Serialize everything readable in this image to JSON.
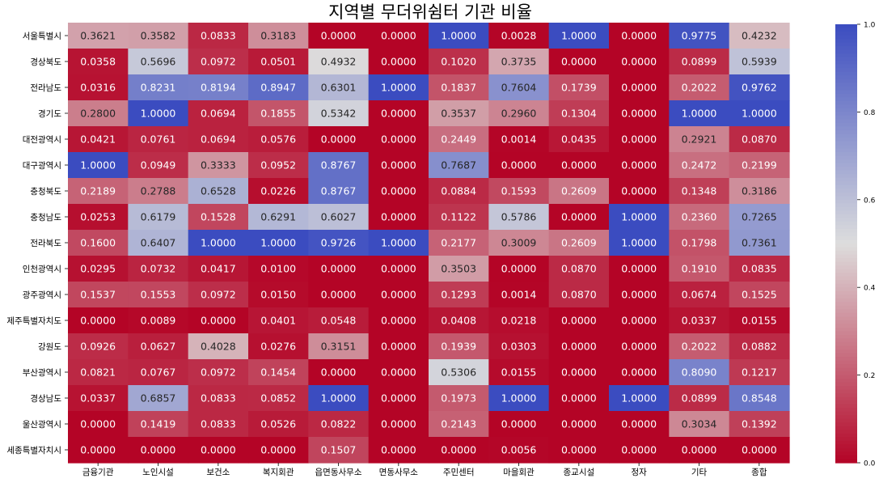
{
  "chart_data": {
    "type": "heatmap",
    "title": "지역별 무더위쉼터 기관 비율",
    "colormap": "coolwarm_reversed",
    "color_low": "#b40426",
    "color_mid": "#dddddd",
    "color_high": "#3b4cc0",
    "value_range": [
      0,
      1
    ],
    "colorbar_ticks": [
      "0.0",
      "0.2",
      "0.4",
      "0.6",
      "0.8",
      "1.0"
    ],
    "columns": [
      "금융기관",
      "노인시설",
      "보건소",
      "복지회관",
      "읍면동사무소",
      "면동사무소",
      "주민센터",
      "마을회관",
      "종교시설",
      "정자",
      "기타",
      "종합"
    ],
    "rows": [
      "서울특별시",
      "경상북도",
      "전라남도",
      "경기도",
      "대전광역시",
      "대구광역시",
      "충청북도",
      "충청남도",
      "전라북도",
      "인천광역시",
      "광주광역시",
      "제주특별자치도",
      "강원도",
      "부산광역시",
      "경상남도",
      "울산광역시",
      "세종특별자치시"
    ],
    "values": [
      [
        "0.3621",
        "0.3582",
        "0.0833",
        "0.3183",
        "0.0000",
        "0.0000",
        "1.0000",
        "0.0028",
        "1.0000",
        "0.0000",
        "0.9775",
        "0.4232"
      ],
      [
        "0.0358",
        "0.5696",
        "0.0972",
        "0.0501",
        "0.4932",
        "0.0000",
        "0.1020",
        "0.3735",
        "0.0000",
        "0.0000",
        "0.0899",
        "0.5939"
      ],
      [
        "0.0316",
        "0.8231",
        "0.8194",
        "0.8947",
        "0.6301",
        "1.0000",
        "0.1837",
        "0.7604",
        "0.1739",
        "0.0000",
        "0.2022",
        "0.9762"
      ],
      [
        "0.2800",
        "1.0000",
        "0.0694",
        "0.1855",
        "0.5342",
        "0.0000",
        "0.3537",
        "0.2960",
        "0.1304",
        "0.0000",
        "1.0000",
        "1.0000"
      ],
      [
        "0.0421",
        "0.0761",
        "0.0694",
        "0.0576",
        "0.0000",
        "0.0000",
        "0.2449",
        "0.0014",
        "0.0435",
        "0.0000",
        "0.2921",
        "0.0870"
      ],
      [
        "1.0000",
        "0.0949",
        "0.3333",
        "0.0952",
        "0.8767",
        "0.0000",
        "0.7687",
        "0.0000",
        "0.0000",
        "0.0000",
        "0.2472",
        "0.2199"
      ],
      [
        "0.2189",
        "0.2788",
        "0.6528",
        "0.0226",
        "0.8767",
        "0.0000",
        "0.0884",
        "0.1593",
        "0.2609",
        "0.0000",
        "0.1348",
        "0.3186"
      ],
      [
        "0.0253",
        "0.6179",
        "0.1528",
        "0.6291",
        "0.6027",
        "0.0000",
        "0.1122",
        "0.5786",
        "0.0000",
        "1.0000",
        "0.2360",
        "0.7265"
      ],
      [
        "0.1600",
        "0.6407",
        "1.0000",
        "1.0000",
        "0.9726",
        "1.0000",
        "0.2177",
        "0.3009",
        "0.2609",
        "1.0000",
        "0.1798",
        "0.7361"
      ],
      [
        "0.0295",
        "0.0732",
        "0.0417",
        "0.0100",
        "0.0000",
        "0.0000",
        "0.3503",
        "0.0000",
        "0.0870",
        "0.0000",
        "0.1910",
        "0.0835"
      ],
      [
        "0.1537",
        "0.1553",
        "0.0972",
        "0.0150",
        "0.0000",
        "0.0000",
        "0.1293",
        "0.0014",
        "0.0870",
        "0.0000",
        "0.0674",
        "0.1525"
      ],
      [
        "0.0000",
        "0.0089",
        "0.0000",
        "0.0401",
        "0.0548",
        "0.0000",
        "0.0408",
        "0.0218",
        "0.0000",
        "0.0000",
        "0.0337",
        "0.0155"
      ],
      [
        "0.0926",
        "0.0627",
        "0.4028",
        "0.0276",
        "0.3151",
        "0.0000",
        "0.1939",
        "0.0303",
        "0.0000",
        "0.0000",
        "0.2022",
        "0.0882"
      ],
      [
        "0.0821",
        "0.0767",
        "0.0972",
        "0.1454",
        "0.0000",
        "0.0000",
        "0.5306",
        "0.0155",
        "0.0000",
        "0.0000",
        "0.8090",
        "0.1217"
      ],
      [
        "0.0337",
        "0.6857",
        "0.0833",
        "0.0852",
        "1.0000",
        "0.0000",
        "0.1973",
        "1.0000",
        "0.0000",
        "1.0000",
        "0.0899",
        "0.8548"
      ],
      [
        "0.0000",
        "0.1419",
        "0.0833",
        "0.0526",
        "0.0822",
        "0.0000",
        "0.2143",
        "0.0000",
        "0.0000",
        "0.0000",
        "0.3034",
        "0.1392"
      ],
      [
        "0.0000",
        "0.0000",
        "0.0000",
        "0.0000",
        "0.1507",
        "0.0000",
        "0.0000",
        "0.0056",
        "0.0000",
        "0.0000",
        "0.0000",
        "0.0000"
      ]
    ]
  }
}
